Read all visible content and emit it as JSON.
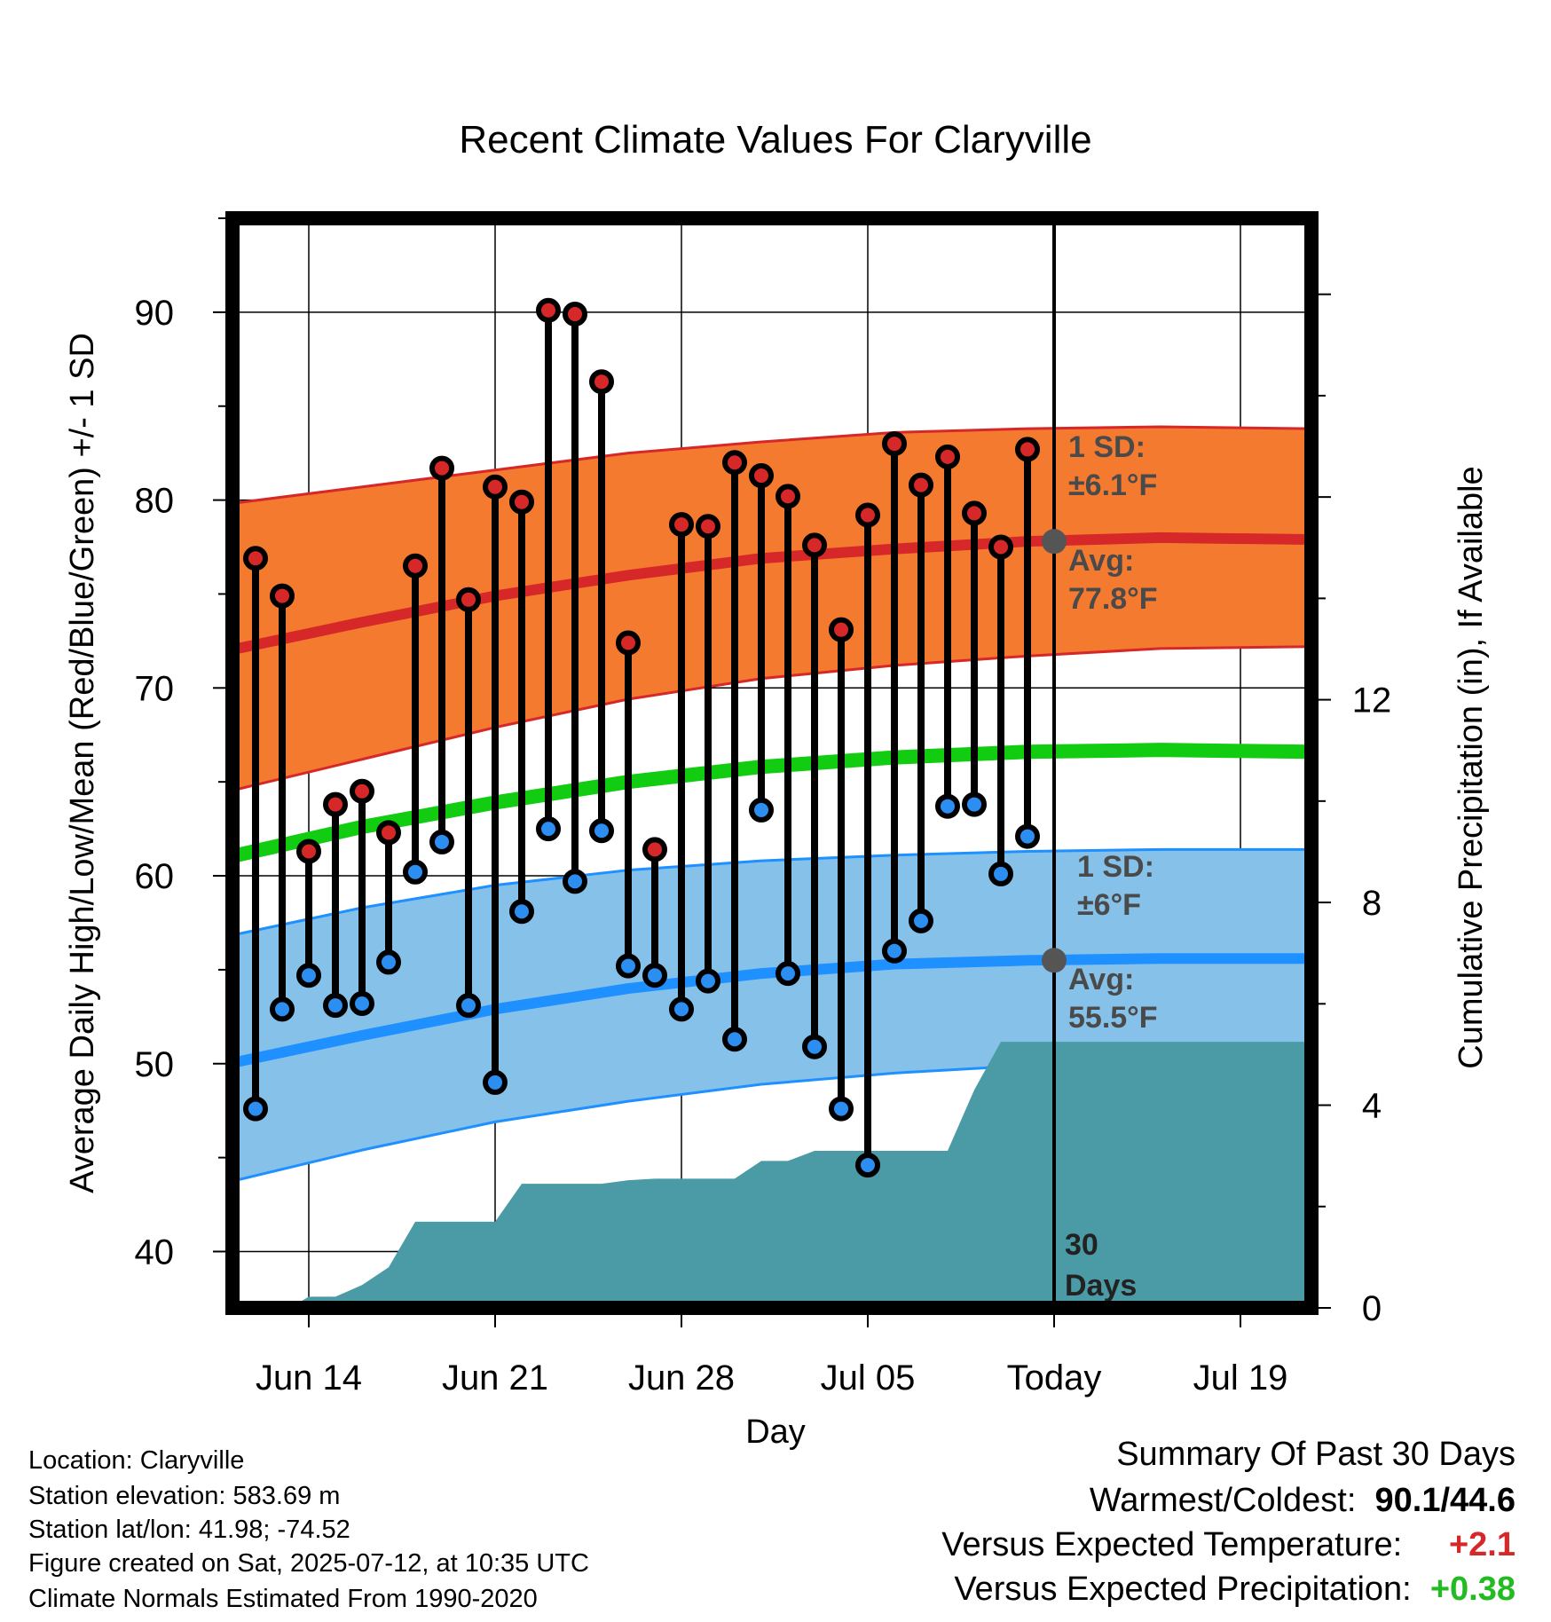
{
  "chart_data": {
    "type": "line",
    "title": "Recent Climate Values For Claryville",
    "xlabel": "Day",
    "ylabel": "Average Daily High/Low/Mean (Red/Blue/Green) +/- 1 SD",
    "y2label": "Cumulative Precipitation (in), If Available",
    "ylim": [
      37,
      95
    ],
    "y2lim": [
      0,
      21.5
    ],
    "y_ticks": [
      40,
      50,
      60,
      70,
      80,
      90
    ],
    "y2_ticks": [
      0,
      4,
      8,
      12
    ],
    "x_start": "Jun 11",
    "x_end": "Jul 22",
    "x_ticks": [
      {
        "day": 3,
        "label": "Jun 14"
      },
      {
        "day": 10,
        "label": "Jun 21"
      },
      {
        "day": 17,
        "label": "Jun 28"
      },
      {
        "day": 24,
        "label": "Jul 05"
      },
      {
        "day": 31,
        "label": "Today"
      },
      {
        "day": 38,
        "label": "Jul 19"
      }
    ],
    "today_day": 31,
    "today_label": "30 Days",
    "normal_high": {
      "days": [
        0,
        5,
        10,
        15,
        20,
        25,
        30,
        35,
        40.6
      ],
      "avg": [
        72,
        73.5,
        74.9,
        76.0,
        76.9,
        77.4,
        77.8,
        78.0,
        77.9
      ],
      "sd_upper": [
        79.8,
        80.7,
        81.6,
        82.5,
        83.1,
        83.6,
        83.8,
        83.9,
        83.8
      ],
      "sd_lower": [
        64.5,
        66.2,
        67.9,
        69.4,
        70.5,
        71.2,
        71.7,
        72.1,
        72.2
      ],
      "avg_label": "Avg:",
      "avg_value": "77.8°F",
      "sd_label": "1 SD:",
      "sd_value": "±6.1°F"
    },
    "normal_low": {
      "days": [
        0,
        5,
        10,
        15,
        20,
        25,
        30,
        35,
        40.6
      ],
      "avg": [
        50.0,
        51.5,
        52.9,
        54.0,
        54.8,
        55.3,
        55.5,
        55.6,
        55.6
      ],
      "sd_upper": [
        56.8,
        58.3,
        59.5,
        60.3,
        60.8,
        61.1,
        61.3,
        61.4,
        61.4
      ],
      "sd_lower": [
        43.7,
        45.4,
        46.9,
        48.0,
        48.9,
        49.5,
        49.9,
        50.1,
        50.1
      ],
      "avg_label": "Avg:",
      "avg_value": "55.5°F",
      "sd_label": "1 SD:",
      "sd_value": "±6°F"
    },
    "normal_mean": {
      "days": [
        0,
        5,
        10,
        15,
        20,
        25,
        30,
        35,
        40.6
      ],
      "values": [
        61.0,
        62.6,
        63.9,
        65.0,
        65.8,
        66.3,
        66.6,
        66.7,
        66.6
      ]
    },
    "observed": {
      "days": [
        1,
        2,
        3,
        4,
        5,
        6,
        7,
        8,
        9,
        10,
        11,
        12,
        13,
        14,
        15,
        16,
        17,
        18,
        19,
        20,
        21,
        22,
        23,
        24,
        25,
        26,
        27,
        28,
        29,
        30
      ],
      "highs": [
        76.9,
        74.9,
        61.3,
        63.8,
        64.5,
        62.3,
        76.5,
        81.7,
        74.7,
        80.7,
        79.9,
        90.1,
        89.9,
        86.3,
        72.4,
        61.4,
        78.7,
        78.6,
        82.0,
        81.3,
        80.2,
        77.6,
        73.1,
        79.2,
        83.0,
        80.8,
        82.3,
        79.3,
        77.5,
        82.7
      ],
      "lows": [
        47.6,
        52.9,
        54.7,
        53.1,
        53.2,
        55.4,
        60.2,
        61.8,
        53.1,
        49.0,
        58.1,
        62.5,
        59.7,
        62.4,
        55.2,
        54.7,
        52.9,
        54.4,
        51.3,
        63.5,
        54.8,
        50.9,
        47.6,
        44.6,
        56.0,
        57.6,
        63.7,
        63.8,
        60.1,
        62.1
      ]
    },
    "precip": {
      "days": [
        0,
        2.3,
        3,
        4,
        5,
        6,
        7,
        8,
        9,
        10,
        11,
        12,
        13,
        14,
        15,
        16,
        17,
        18,
        19,
        20,
        21,
        22,
        23,
        24,
        25,
        26,
        27,
        28,
        29,
        30,
        40.6
      ],
      "cumulative": [
        0,
        0,
        0.22,
        0.22,
        0.45,
        0.8,
        1.7,
        1.7,
        1.7,
        1.7,
        2.45,
        2.45,
        2.45,
        2.45,
        2.52,
        2.55,
        2.55,
        2.55,
        2.55,
        2.9,
        2.9,
        3.1,
        3.1,
        3.1,
        3.1,
        3.1,
        3.1,
        4.3,
        5.25,
        5.25,
        5.25
      ]
    },
    "grid": true
  },
  "info": {
    "location": "Location: Claryville",
    "elevation": "Station elevation: 583.69 m",
    "latlon": "Station lat/lon: 41.98; -74.52",
    "created": "Figure created on Sat, 2025-07-12, at 10:35 UTC",
    "normals": "Climate Normals Estimated From 1990-2020"
  },
  "summary": {
    "heading": "Summary Of Past 30 Days",
    "warm_cold_label": "Warmest/Coldest:",
    "warm_cold_value": "90.1/44.6",
    "temp_label": "Versus Expected Temperature:",
    "temp_value": "+2.1",
    "precip_label": "Versus Expected Precipitation:",
    "precip_value": "+0.38"
  },
  "colors": {
    "high_band": "#f47a30",
    "high_line": "#d62828",
    "low_band": "#85c1e9",
    "low_line": "#1e90ff",
    "mean_line": "#11cc11",
    "precip_fill": "#4a9ba5",
    "high_point": "#d62828",
    "low_point": "#2b8ef0",
    "today_dot": "#555555"
  }
}
